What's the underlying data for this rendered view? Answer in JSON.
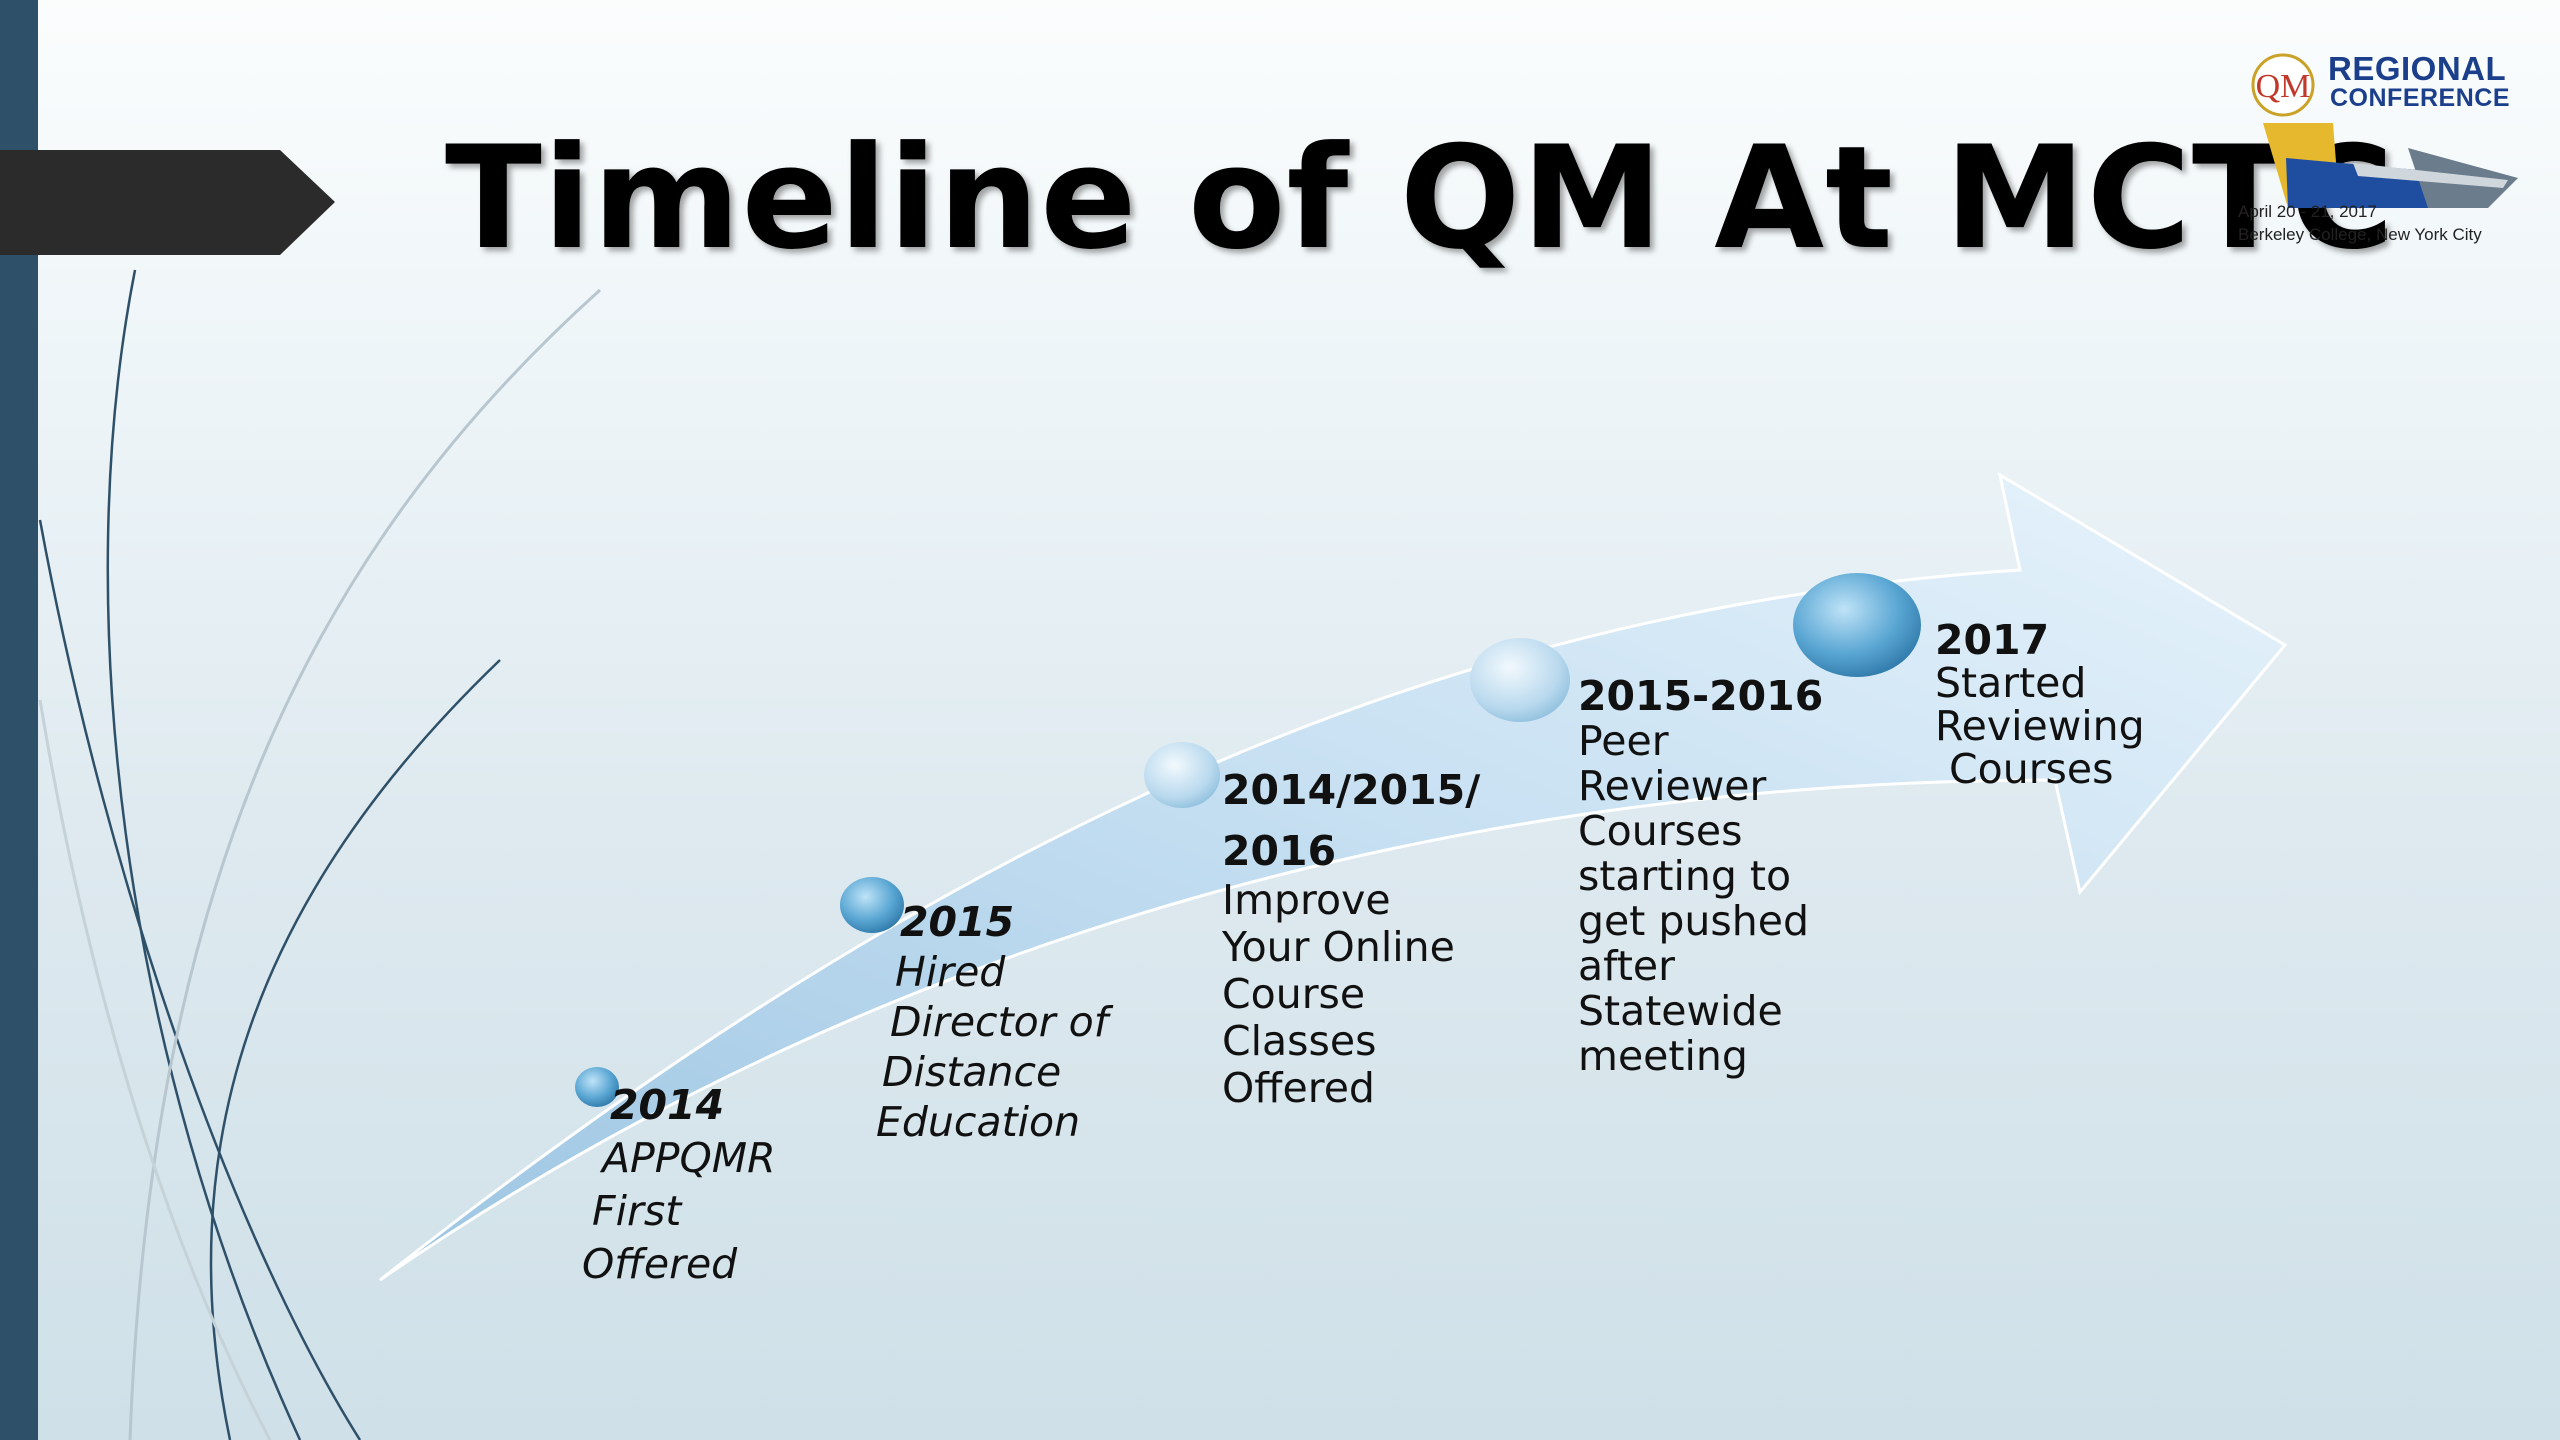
{
  "slide": {
    "title": "Timeline of QM At MCTC"
  },
  "logo": {
    "qm": "QM",
    "line1": "REGIONAL",
    "line2": "CONFERENCE",
    "date": "April 20 - 21, 2017",
    "place": "Berkeley College, New York City"
  },
  "milestones": [
    {
      "year": "2014",
      "lines": [
        "APPQMR",
        "First",
        "Offered"
      ]
    },
    {
      "year": "2015",
      "lines": [
        "Hired",
        "Director of",
        "Distance",
        "Education"
      ]
    },
    {
      "year_lines": [
        "2014/2015/",
        "2016"
      ],
      "lines": [
        "Improve",
        "Your Online",
        "Course",
        "Classes",
        "Offered"
      ]
    },
    {
      "year": "2015-2016",
      "lines": [
        "Peer",
        "Reviewer",
        "Courses",
        "starting to",
        "get pushed",
        "after",
        "Statewide",
        "meeting"
      ]
    },
    {
      "year": "2017",
      "lines": [
        "Started",
        "Reviewing",
        "Courses"
      ]
    }
  ],
  "colors": {
    "sidebar": "#2e5068",
    "banner": "#2b2b2b",
    "arrow_light": "#e3f0fa",
    "arrow_dark": "#9cc5e2",
    "dot": "#5ba7d4"
  }
}
